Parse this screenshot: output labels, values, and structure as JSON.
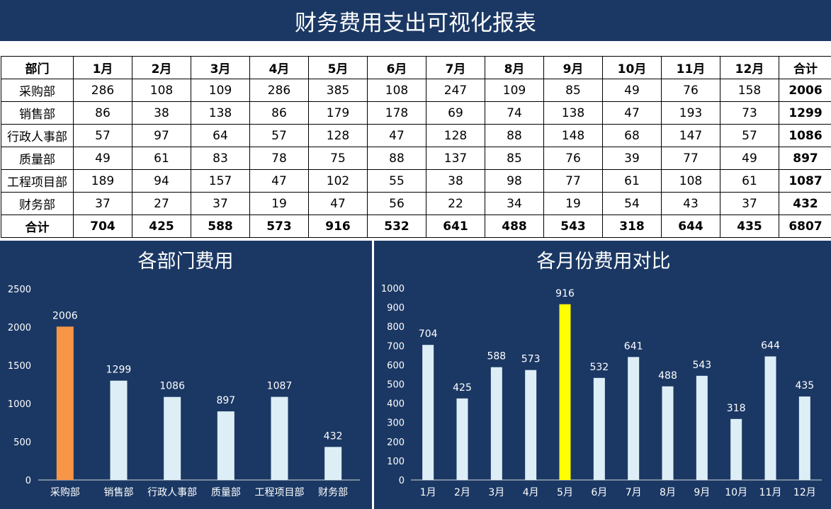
{
  "report": {
    "title": "财务费用支出可视化报表"
  },
  "table": {
    "headers": [
      "部门",
      "1月",
      "2月",
      "3月",
      "4月",
      "5月",
      "6月",
      "7月",
      "8月",
      "9月",
      "10月",
      "11月",
      "12月",
      "合计"
    ],
    "rows": [
      [
        "采购部",
        "286",
        "108",
        "109",
        "286",
        "385",
        "108",
        "247",
        "109",
        "85",
        "49",
        "76",
        "158",
        "2006"
      ],
      [
        "销售部",
        "86",
        "38",
        "138",
        "86",
        "179",
        "178",
        "69",
        "74",
        "138",
        "47",
        "193",
        "73",
        "1299"
      ],
      [
        "行政人事部",
        "57",
        "97",
        "64",
        "57",
        "128",
        "47",
        "128",
        "88",
        "148",
        "68",
        "147",
        "57",
        "1086"
      ],
      [
        "质量部",
        "49",
        "61",
        "83",
        "78",
        "75",
        "88",
        "137",
        "85",
        "76",
        "39",
        "77",
        "49",
        "897"
      ],
      [
        "工程项目部",
        "189",
        "94",
        "157",
        "47",
        "102",
        "55",
        "38",
        "98",
        "77",
        "61",
        "108",
        "61",
        "1087"
      ],
      [
        "财务部",
        "37",
        "27",
        "37",
        "19",
        "47",
        "56",
        "22",
        "34",
        "19",
        "54",
        "43",
        "37",
        "432"
      ]
    ],
    "total_row": [
      "合计",
      "704",
      "425",
      "588",
      "573",
      "916",
      "532",
      "641",
      "488",
      "543",
      "318",
      "644",
      "435",
      "6807"
    ]
  },
  "chart_data": [
    {
      "type": "bar",
      "title": "各部门费用",
      "categories": [
        "采购部",
        "销售部",
        "行政人事部",
        "质量部",
        "工程项目部",
        "财务部"
      ],
      "values": [
        2006,
        1299,
        1086,
        897,
        1087,
        432
      ],
      "ylim": [
        0,
        2500
      ],
      "yticks": [
        0,
        500,
        1000,
        1500,
        2000,
        2500
      ],
      "xlabel": "",
      "ylabel": "",
      "grid": false,
      "bar_color": "#ddeef6",
      "highlight_index": 0,
      "highlight_color": "#f79646"
    },
    {
      "type": "bar",
      "title": "各月份费用对比",
      "categories": [
        "1月",
        "2月",
        "3月",
        "4月",
        "5月",
        "6月",
        "7月",
        "8月",
        "9月",
        "10月",
        "11月",
        "12月"
      ],
      "values": [
        704,
        425,
        588,
        573,
        916,
        532,
        641,
        488,
        543,
        318,
        644,
        435
      ],
      "ylim": [
        0,
        1000
      ],
      "yticks": [
        0,
        100,
        200,
        300,
        400,
        500,
        600,
        700,
        800,
        900,
        1000
      ],
      "xlabel": "",
      "ylabel": "",
      "grid": false,
      "bar_color": "#ddeef6",
      "highlight_index": 4,
      "highlight_color": "#ffff00"
    }
  ]
}
